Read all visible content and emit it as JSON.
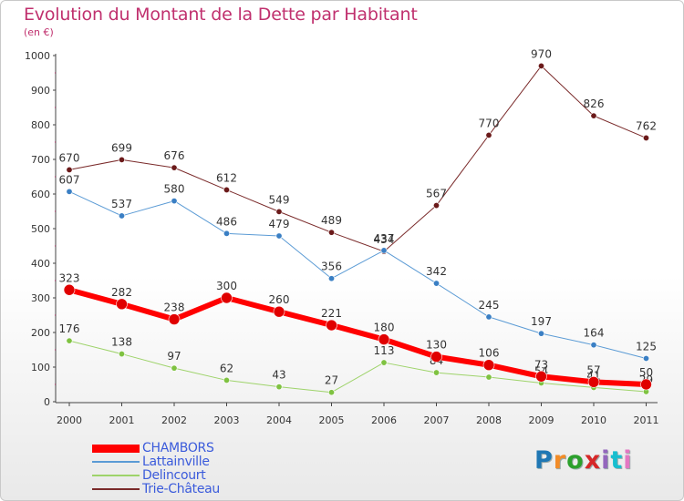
{
  "header": {
    "title": "Evolution du Montant de la Dette par Habitant",
    "unit": "(en €)"
  },
  "logo": {
    "text": "Proxiti",
    "colors": [
      "#1f77b4",
      "#f28c28",
      "#2ca02c",
      "#d62728",
      "#9467bd",
      "#17becf",
      "#e377c2"
    ]
  },
  "chart_data": {
    "type": "line",
    "x": [
      "2000",
      "2001",
      "2002",
      "2003",
      "2004",
      "2005",
      "2006",
      "2007",
      "2008",
      "2009",
      "2010",
      "2011"
    ],
    "ylim": [
      0,
      1000
    ],
    "yticks": [
      "0",
      "100",
      "200",
      "300",
      "400",
      "500",
      "600",
      "700",
      "800",
      "900",
      "1000"
    ],
    "grid": false,
    "legend_position": "bottom-left",
    "series": [
      {
        "name": "Trie-Château",
        "color": "#7a2a2a",
        "marker": "#6b1a1a",
        "width": 1,
        "values": [
          670,
          699,
          676,
          612,
          549,
          489,
          434,
          567,
          770,
          970,
          826,
          762
        ],
        "labels": [
          "670",
          "699",
          "676",
          "612",
          "549",
          "489",
          "434",
          "567",
          "770",
          "970",
          "826",
          "762"
        ]
      },
      {
        "name": "Lattainville",
        "color": "#5b9bd5",
        "marker": "#3a7fc4",
        "width": 1,
        "values": [
          607,
          537,
          580,
          486,
          479,
          356,
          437,
          342,
          245,
          197,
          164,
          125
        ],
        "labels": [
          "607",
          "537",
          "580",
          "486",
          "479",
          "356",
          "437",
          "342",
          "245",
          "197",
          "164",
          "125"
        ]
      },
      {
        "name": "Delincourt",
        "color": "#9ed36a",
        "marker": "#7fc241",
        "width": 1,
        "values": [
          176,
          138,
          97,
          62,
          43,
          27,
          113,
          84,
          71,
          54,
          41,
          29
        ],
        "labels": [
          "176",
          "138",
          "97",
          "62",
          "43",
          "27",
          "113",
          "84",
          "",
          "54",
          "41",
          "29"
        ]
      },
      {
        "name": "CHAMBORS",
        "color": "#ff0000",
        "marker": "#e00000",
        "width": 6,
        "values": [
          323,
          282,
          238,
          300,
          260,
          221,
          180,
          130,
          106,
          73,
          57,
          50
        ],
        "labels": [
          "323",
          "282",
          "238",
          "300",
          "260",
          "221",
          "180",
          "130",
          "106",
          "73",
          "57",
          "50"
        ]
      }
    ],
    "legend": [
      "CHAMBORS",
      "Lattainville",
      "Delincourt",
      "Trie-Château"
    ]
  }
}
